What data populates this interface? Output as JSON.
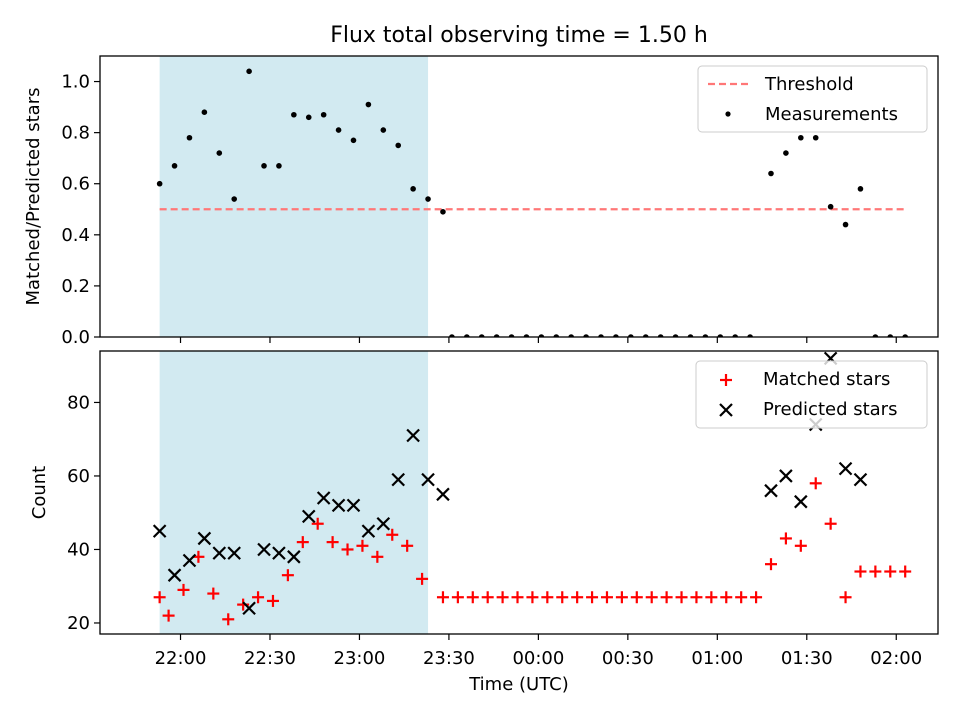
{
  "figure": {
    "title": "Flux total observing time = 1.50 h"
  },
  "colors": {
    "shade": "#add8e6",
    "threshold": "#ff7777",
    "measurement": "#000000",
    "matched": "#ff0000",
    "predicted": "#000000"
  },
  "chart_data": [
    {
      "type": "scatter",
      "ylabel": "Matched/Predicted stars",
      "ylim": [
        0,
        1.1
      ],
      "yticks": [
        "0.0",
        "0.2",
        "0.4",
        "0.6",
        "0.8",
        "1.0"
      ],
      "legend_position": "upper right",
      "shaded_interval": [
        "21:53",
        "23:23"
      ],
      "threshold": {
        "name": "Threshold",
        "value": 0.5,
        "x_start": "21:53",
        "x_end": "02:03"
      },
      "series": [
        {
          "name": "Measurements",
          "marker": "dot",
          "points": [
            [
              "21:53",
              0.6
            ],
            [
              "21:58",
              0.67
            ],
            [
              "22:03",
              0.78
            ],
            [
              "22:08",
              0.88
            ],
            [
              "22:13",
              0.72
            ],
            [
              "22:18",
              0.54
            ],
            [
              "22:23",
              1.04
            ],
            [
              "22:28",
              0.67
            ],
            [
              "22:33",
              0.67
            ],
            [
              "22:38",
              0.87
            ],
            [
              "22:43",
              0.86
            ],
            [
              "22:48",
              0.87
            ],
            [
              "22:53",
              0.81
            ],
            [
              "22:58",
              0.77
            ],
            [
              "23:03",
              0.91
            ],
            [
              "23:08",
              0.81
            ],
            [
              "23:13",
              0.75
            ],
            [
              "23:18",
              0.58
            ],
            [
              "23:23",
              0.54
            ],
            [
              "23:28",
              0.49
            ],
            [
              "23:31",
              0.0
            ],
            [
              "23:36",
              0.0
            ],
            [
              "23:41",
              0.0
            ],
            [
              "23:46",
              0.0
            ],
            [
              "23:51",
              0.0
            ],
            [
              "23:56",
              0.0
            ],
            [
              "00:01",
              0.0
            ],
            [
              "00:06",
              0.0
            ],
            [
              "00:11",
              0.0
            ],
            [
              "00:16",
              0.0
            ],
            [
              "00:21",
              0.0
            ],
            [
              "00:26",
              0.0
            ],
            [
              "00:31",
              0.0
            ],
            [
              "00:36",
              0.0
            ],
            [
              "00:41",
              0.0
            ],
            [
              "00:46",
              0.0
            ],
            [
              "00:51",
              0.0
            ],
            [
              "00:56",
              0.0
            ],
            [
              "01:01",
              0.0
            ],
            [
              "01:06",
              0.0
            ],
            [
              "01:11",
              0.0
            ],
            [
              "01:18",
              0.64
            ],
            [
              "01:23",
              0.72
            ],
            [
              "01:28",
              0.78
            ],
            [
              "01:33",
              0.78
            ],
            [
              "01:38",
              0.51
            ],
            [
              "01:43",
              0.44
            ],
            [
              "01:48",
              0.58
            ],
            [
              "01:53",
              0.0
            ],
            [
              "01:58",
              0.0
            ],
            [
              "02:03",
              0.0
            ]
          ]
        }
      ]
    },
    {
      "type": "scatter",
      "xlabel": "Time (UTC)",
      "ylabel": "Count",
      "ylim": [
        17,
        94
      ],
      "yticks": [
        "20",
        "40",
        "60",
        "80"
      ],
      "xticks": [
        "22:00",
        "22:30",
        "23:00",
        "23:30",
        "00:00",
        "00:30",
        "01:00",
        "01:30",
        "02:00"
      ],
      "legend_position": "upper right",
      "shaded_interval": [
        "21:53",
        "23:23"
      ],
      "series": [
        {
          "name": "Matched stars",
          "marker": "plus",
          "points": [
            [
              "21:53",
              27
            ],
            [
              "21:56",
              22
            ],
            [
              "22:01",
              29
            ],
            [
              "22:06",
              38
            ],
            [
              "22:11",
              28
            ],
            [
              "22:16",
              21
            ],
            [
              "22:21",
              25
            ],
            [
              "22:26",
              27
            ],
            [
              "22:31",
              26
            ],
            [
              "22:36",
              33
            ],
            [
              "22:41",
              42
            ],
            [
              "22:46",
              47
            ],
            [
              "22:51",
              42
            ],
            [
              "22:56",
              40
            ],
            [
              "23:01",
              41
            ],
            [
              "23:06",
              38
            ],
            [
              "23:11",
              44
            ],
            [
              "23:16",
              41
            ],
            [
              "23:21",
              32
            ],
            [
              "23:28",
              27
            ],
            [
              "23:33",
              27
            ],
            [
              "23:38",
              27
            ],
            [
              "23:43",
              27
            ],
            [
              "23:48",
              27
            ],
            [
              "23:53",
              27
            ],
            [
              "23:58",
              27
            ],
            [
              "00:03",
              27
            ],
            [
              "00:08",
              27
            ],
            [
              "00:13",
              27
            ],
            [
              "00:18",
              27
            ],
            [
              "00:23",
              27
            ],
            [
              "00:28",
              27
            ],
            [
              "00:33",
              27
            ],
            [
              "00:38",
              27
            ],
            [
              "00:43",
              27
            ],
            [
              "00:48",
              27
            ],
            [
              "00:53",
              27
            ],
            [
              "00:58",
              27
            ],
            [
              "01:03",
              27
            ],
            [
              "01:08",
              27
            ],
            [
              "01:13",
              27
            ],
            [
              "01:18",
              36
            ],
            [
              "01:23",
              43
            ],
            [
              "01:28",
              41
            ],
            [
              "01:33",
              58
            ],
            [
              "01:38",
              47
            ],
            [
              "01:43",
              27
            ],
            [
              "01:48",
              34
            ],
            [
              "01:53",
              34
            ],
            [
              "01:58",
              34
            ],
            [
              "02:03",
              34
            ]
          ]
        },
        {
          "name": "Predicted stars",
          "marker": "x",
          "points": [
            [
              "21:53",
              45
            ],
            [
              "21:58",
              33
            ],
            [
              "22:03",
              37
            ],
            [
              "22:08",
              43
            ],
            [
              "22:13",
              39
            ],
            [
              "22:18",
              39
            ],
            [
              "22:23",
              24
            ],
            [
              "22:28",
              40
            ],
            [
              "22:33",
              39
            ],
            [
              "22:38",
              38
            ],
            [
              "22:43",
              49
            ],
            [
              "22:48",
              54
            ],
            [
              "22:53",
              52
            ],
            [
              "22:58",
              52
            ],
            [
              "23:03",
              45
            ],
            [
              "23:08",
              47
            ],
            [
              "23:13",
              59
            ],
            [
              "23:18",
              71
            ],
            [
              "23:23",
              59
            ],
            [
              "23:28",
              55
            ],
            [
              "01:18",
              56
            ],
            [
              "01:23",
              60
            ],
            [
              "01:28",
              53
            ],
            [
              "01:33",
              74
            ],
            [
              "01:38",
              92
            ],
            [
              "01:43",
              62
            ],
            [
              "01:48",
              59
            ]
          ]
        }
      ]
    }
  ]
}
